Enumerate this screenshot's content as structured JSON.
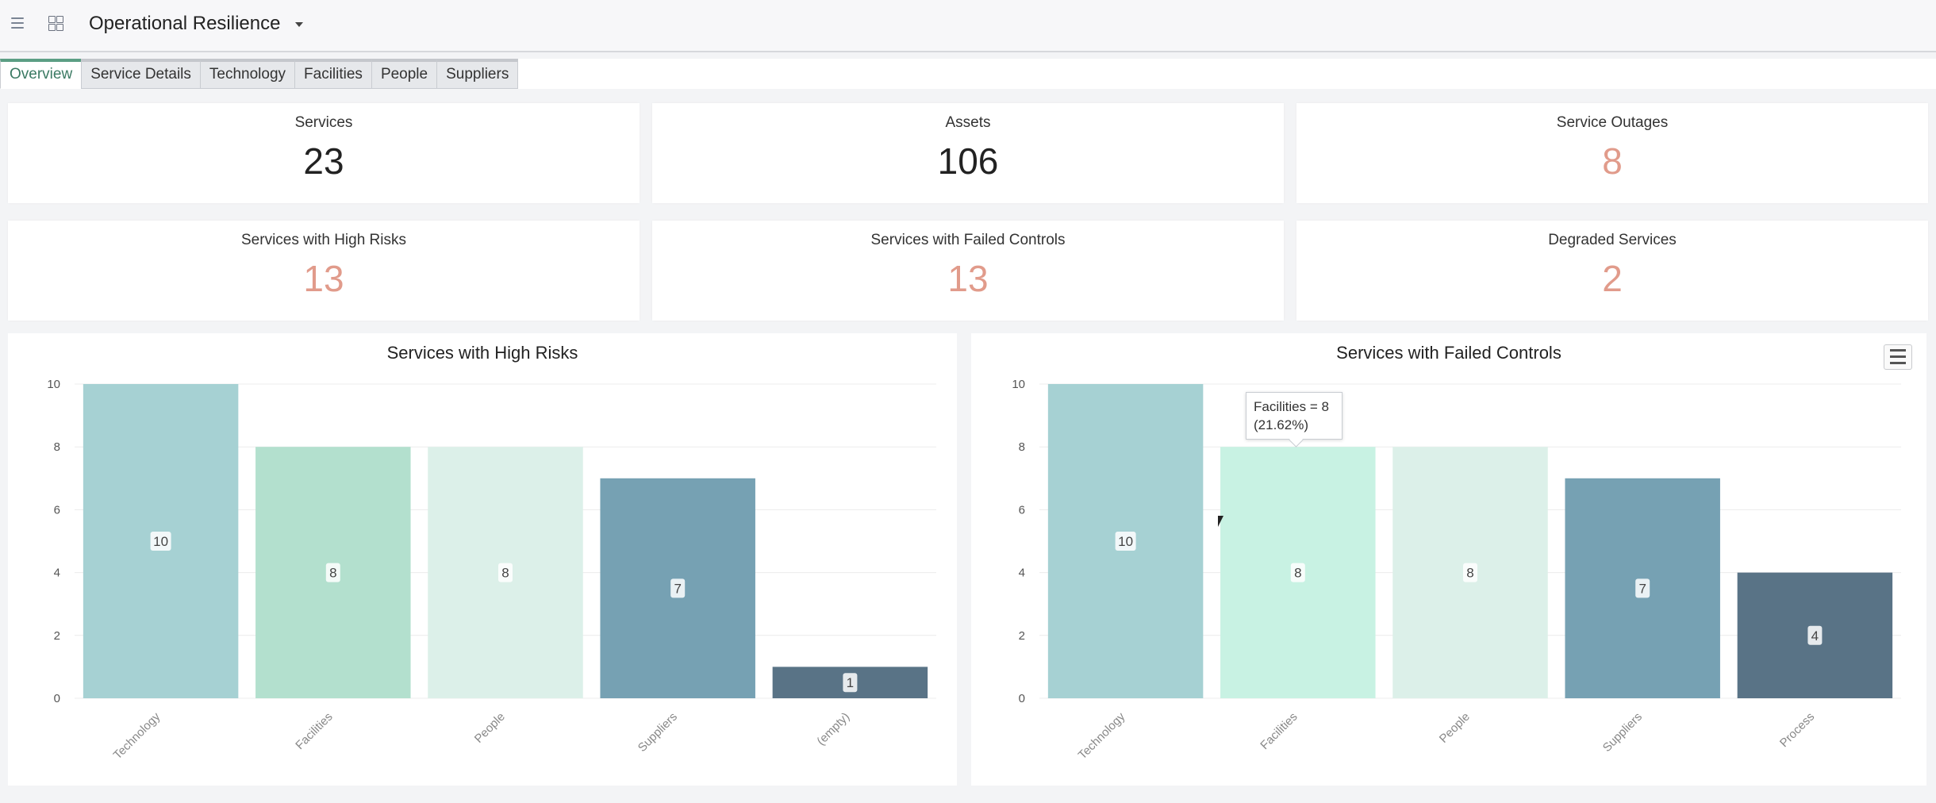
{
  "app": {
    "title": "Operational Resilience",
    "icons": [
      "menu-icon",
      "grid-icon",
      "chevron-down-icon"
    ]
  },
  "tabs": [
    "Overview",
    "Service Details",
    "Technology",
    "Facilities",
    "People",
    "Suppliers"
  ],
  "kpis": [
    {
      "label": "Services",
      "value": "23",
      "color": "#222222"
    },
    {
      "label": "Assets",
      "value": "106",
      "color": "#222222"
    },
    {
      "label": "Service Outages",
      "value": "8",
      "color": "#e19b8b"
    },
    {
      "label": "Services with High Risks",
      "value": "13",
      "color": "#e19b8b"
    },
    {
      "label": "Services with Failed Controls",
      "value": "13",
      "color": "#e19b8b"
    },
    {
      "label": "Degraded Services",
      "value": "2",
      "color": "#e19b8b"
    }
  ],
  "chart_data": [
    {
      "type": "bar",
      "title": "Services with High Risks",
      "categories": [
        "Technology",
        "Facilities",
        "People",
        "Suppliers",
        "(empty)"
      ],
      "values": [
        10,
        8,
        8,
        7,
        1
      ],
      "colors": [
        "#a6d1d3",
        "#b3e0ce",
        "#dcf0e9",
        "#76a1b3",
        "#597386"
      ],
      "ylim": [
        0,
        10
      ],
      "yticks": [
        0,
        2,
        4,
        6,
        8,
        10
      ],
      "grid": true
    },
    {
      "type": "bar",
      "title": "Services with Failed Controls",
      "categories": [
        "Technology",
        "Facilities",
        "People",
        "Suppliers",
        "Process"
      ],
      "values": [
        10,
        8,
        8,
        7,
        4
      ],
      "colors": [
        "#a6d1d3",
        "#c8f2e3",
        "#dcf0e9",
        "#76a1b3",
        "#597386"
      ],
      "ylim": [
        0,
        10
      ],
      "yticks": [
        0,
        2,
        4,
        6,
        8,
        10
      ],
      "grid": true,
      "tooltip": {
        "line1": "Facilities = 8",
        "line2": "(21.62%)"
      }
    }
  ]
}
